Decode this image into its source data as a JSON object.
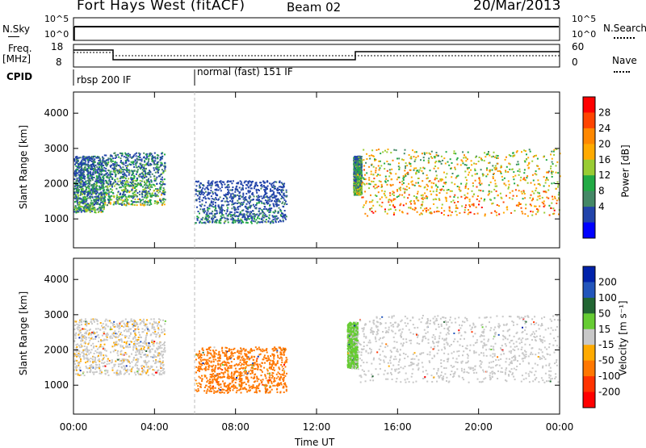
{
  "header": {
    "title": "Fort Hays West (fitACF)",
    "beam": "Beam 02",
    "date": "20/Mar/2013"
  },
  "top_panels": {
    "nsky_label": "N.Sky",
    "nsky_ticks": [
      "10^5",
      "10^0"
    ],
    "nsearch_label": "N.Search",
    "nsearch_ticks": [
      "10^5",
      "10^0"
    ],
    "freq_label": "Freq.",
    "freq_unit": "[MHz]",
    "freq_ticks": [
      18,
      8
    ],
    "nave_label": "Nave",
    "nave_ticks": [
      60,
      0
    ],
    "cpid_label": "CPID",
    "cpid_modes": [
      {
        "label": "rbsp 200 IF",
        "start_hour": 0
      },
      {
        "label": "normal (fast) 151 IF",
        "start_hour": 6
      }
    ]
  },
  "axes": {
    "ylabel": "Slant Range [km]",
    "xlabel": "Time UT",
    "y_ticks": [
      1000,
      2000,
      3000,
      4000
    ],
    "x_ticks": [
      "00:00",
      "04:00",
      "08:00",
      "12:00",
      "16:00",
      "20:00",
      "00:00"
    ]
  },
  "power_colorbar": {
    "label": "Power [dB]",
    "ticks": [
      "28",
      "24",
      "20",
      "16",
      "12",
      "8",
      "4"
    ],
    "colors": [
      "#ff0000",
      "#ff4400",
      "#ff8800",
      "#ffaa00",
      "#99cc33",
      "#22aa44",
      "#448866",
      "#2244aa",
      "#0000ff"
    ]
  },
  "velocity_colorbar": {
    "label": "Velocity [m s⁻¹]",
    "ticks": [
      "200",
      "100",
      "50",
      "15",
      "-15",
      "-50",
      "-100",
      "-200"
    ],
    "colors": [
      "#0022aa",
      "#2255bb",
      "#226633",
      "#66cc33",
      "#c8c8c8",
      "#ffaa00",
      "#ff7700",
      "#ff3300",
      "#ff0000"
    ]
  },
  "chart_data": [
    {
      "type": "heatmap",
      "panel": "power",
      "xlabel": "Time UT",
      "ylabel": "Slant Range [km]",
      "xlim_hours": [
        0,
        24
      ],
      "ylim_km": [
        180,
        4600
      ],
      "color_scale": "Power [dB]",
      "scatter_regions": [
        {
          "t": [
            0,
            1.5
          ],
          "r": [
            1200,
            2800
          ],
          "power_db": 10
        },
        {
          "t": [
            1.5,
            4.5
          ],
          "r": [
            1400,
            2900
          ],
          "power_db": 12
        },
        {
          "t": [
            6.0,
            10.5
          ],
          "r": [
            900,
            2100
          ],
          "power_db": 6
        },
        {
          "t": [
            13.8,
            14.2
          ],
          "r": [
            1700,
            2800
          ],
          "power_db": 14
        },
        {
          "t": [
            14.2,
            24
          ],
          "r": [
            1100,
            3000
          ],
          "power_db": 22
        }
      ]
    },
    {
      "type": "heatmap",
      "panel": "velocity",
      "xlabel": "Time UT",
      "ylabel": "Slant Range [km]",
      "xlim_hours": [
        0,
        24
      ],
      "ylim_km": [
        180,
        4600
      ],
      "color_scale": "Velocity [m s⁻¹]",
      "scatter_regions": [
        {
          "t": [
            0,
            4.5
          ],
          "r": [
            1300,
            2900
          ],
          "velocity": -5
        },
        {
          "t": [
            6.0,
            10.5
          ],
          "r": [
            800,
            2100
          ],
          "velocity": -80
        },
        {
          "t": [
            13.5,
            14.0
          ],
          "r": [
            1500,
            2800
          ],
          "velocity": 40
        },
        {
          "t": [
            14.0,
            24
          ],
          "r": [
            1100,
            3000
          ],
          "velocity": 0
        }
      ]
    }
  ]
}
